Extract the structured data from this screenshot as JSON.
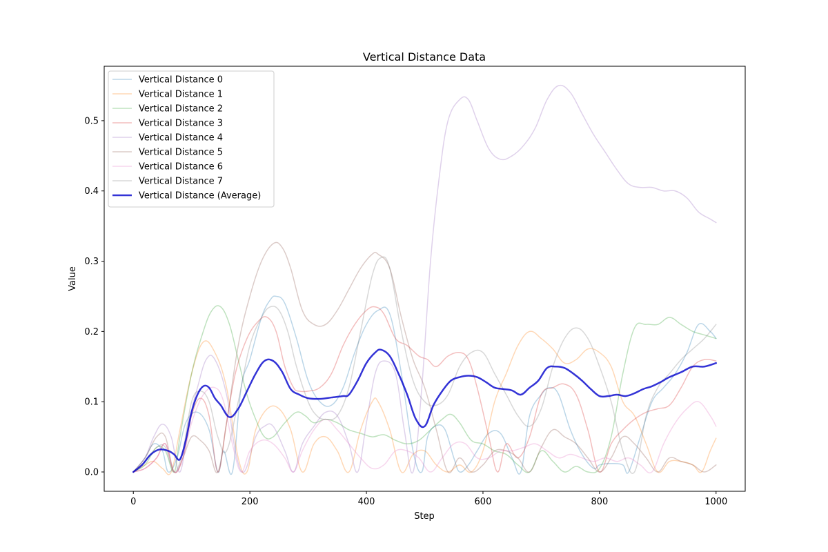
{
  "chart_data": {
    "type": "line",
    "title": "Vertical Distance Data",
    "xlabel": "Step",
    "ylabel": "Value",
    "xlim": [
      -50,
      1050
    ],
    "ylim": [
      -0.0275,
      0.5775
    ],
    "xticks": [
      0,
      200,
      400,
      600,
      800,
      1000
    ],
    "yticks": [
      0.0,
      0.1,
      0.2,
      0.3,
      0.4,
      0.5
    ],
    "xtick_labels": [
      "0",
      "200",
      "400",
      "600",
      "800",
      "1000"
    ],
    "ytick_labels": [
      "0.0",
      "0.1",
      "0.2",
      "0.3",
      "0.4",
      "0.5"
    ],
    "legend_position": "upper-left",
    "grid": false,
    "series": [
      {
        "name": "Vertical Distance 0",
        "color": "#1f77b4",
        "opacity": 0.3,
        "width": 1.5,
        "x": [
          0,
          20,
          35,
          50,
          60,
          75,
          90,
          110,
          130,
          145,
          155,
          170,
          185,
          200,
          220,
          235,
          245,
          260,
          280,
          300,
          320,
          340,
          360,
          380,
          400,
          420,
          440,
          460,
          480,
          495,
          505,
          520,
          535,
          550,
          560,
          575,
          590,
          610,
          630,
          650,
          665,
          680,
          700,
          715,
          730,
          750,
          770,
          790,
          800,
          820,
          840,
          850,
          870,
          890,
          910,
          930,
          950,
          970,
          990,
          1000
        ],
        "y": [
          0.0,
          0.02,
          0.04,
          0.03,
          0.0,
          0.02,
          0.07,
          0.085,
          0.06,
          0.0,
          0.03,
          0.0,
          0.12,
          0.16,
          0.22,
          0.245,
          0.25,
          0.24,
          0.19,
          0.13,
          0.1,
          0.095,
          0.12,
          0.17,
          0.21,
          0.23,
          0.225,
          0.14,
          0.03,
          0.0,
          0.05,
          0.066,
          0.06,
          0.02,
          0.0,
          0.01,
          0.03,
          0.055,
          0.055,
          0.02,
          0.0,
          0.08,
          0.11,
          0.12,
          0.11,
          0.06,
          0.025,
          0.005,
          0.01,
          0.012,
          0.01,
          0.0,
          0.05,
          0.1,
          0.12,
          0.14,
          0.17,
          0.21,
          0.2,
          0.19
        ]
      },
      {
        "name": "Vertical Distance 1",
        "color": "#ff7f0e",
        "opacity": 0.3,
        "width": 1.5,
        "x": [
          0,
          20,
          35,
          50,
          65,
          80,
          100,
          120,
          140,
          160,
          180,
          195,
          210,
          230,
          250,
          270,
          290,
          310,
          330,
          350,
          370,
          390,
          410,
          420,
          440,
          460,
          480,
          500,
          520,
          540,
          560,
          580,
          600,
          620,
          640,
          660,
          680,
          700,
          720,
          740,
          760,
          780,
          800,
          820,
          840,
          860,
          880,
          900,
          920,
          940,
          960,
          975,
          990,
          1000
        ],
        "y": [
          0.0,
          0.01,
          0.015,
          0.005,
          0.0,
          0.06,
          0.14,
          0.185,
          0.17,
          0.12,
          0.02,
          0.0,
          0.06,
          0.09,
          0.09,
          0.06,
          0.0,
          0.04,
          0.05,
          0.03,
          0.0,
          0.06,
          0.1,
          0.1,
          0.06,
          0.0,
          0.025,
          0.03,
          0.01,
          0.0,
          0.01,
          0.0,
          0.03,
          0.1,
          0.14,
          0.18,
          0.2,
          0.19,
          0.175,
          0.155,
          0.16,
          0.175,
          0.17,
          0.15,
          0.1,
          0.08,
          0.04,
          0.0,
          0.015,
          0.015,
          0.01,
          0.0,
          0.03,
          0.048
        ]
      },
      {
        "name": "Vertical Distance 2",
        "color": "#2ca02c",
        "opacity": 0.3,
        "width": 1.5,
        "x": [
          0,
          20,
          40,
          55,
          70,
          80,
          100,
          120,
          135,
          150,
          165,
          180,
          195,
          210,
          225,
          240,
          260,
          280,
          295,
          310,
          330,
          350,
          370,
          390,
          410,
          430,
          450,
          470,
          490,
          510,
          530,
          545,
          560,
          580,
          600,
          620,
          640,
          660,
          680,
          700,
          720,
          740,
          760,
          780,
          800,
          820,
          840,
          860,
          880,
          900,
          920,
          940,
          960,
          980,
          1000
        ],
        "y": [
          0.0,
          0.01,
          0.035,
          0.03,
          0.0,
          0.05,
          0.14,
          0.2,
          0.23,
          0.235,
          0.21,
          0.16,
          0.11,
          0.075,
          0.05,
          0.05,
          0.07,
          0.085,
          0.08,
          0.07,
          0.075,
          0.07,
          0.06,
          0.055,
          0.05,
          0.053,
          0.045,
          0.04,
          0.045,
          0.06,
          0.075,
          0.082,
          0.07,
          0.045,
          0.04,
          0.03,
          0.025,
          0.01,
          0.0,
          0.03,
          0.015,
          0.0,
          0.008,
          0.0,
          0.005,
          0.05,
          0.14,
          0.205,
          0.21,
          0.21,
          0.22,
          0.21,
          0.2,
          0.195,
          0.19
        ]
      },
      {
        "name": "Vertical Distance 3",
        "color": "#d62728",
        "opacity": 0.3,
        "width": 1.5,
        "x": [
          0,
          20,
          40,
          55,
          70,
          85,
          100,
          115,
          130,
          145,
          160,
          175,
          195,
          215,
          230,
          245,
          260,
          275,
          285,
          300,
          320,
          340,
          360,
          380,
          400,
          415,
          430,
          450,
          470,
          490,
          505,
          520,
          540,
          560,
          575,
          590,
          610,
          625,
          640,
          660,
          680,
          700,
          720,
          740,
          760,
          780,
          800,
          820,
          840,
          860,
          880,
          900,
          920,
          940,
          960,
          980,
          1000
        ],
        "y": [
          0.0,
          0.005,
          0.02,
          0.04,
          0.0,
          0.02,
          0.08,
          0.105,
          0.08,
          0.0,
          0.07,
          0.14,
          0.19,
          0.215,
          0.22,
          0.2,
          0.15,
          0.12,
          0.115,
          0.115,
          0.12,
          0.14,
          0.18,
          0.21,
          0.23,
          0.235,
          0.225,
          0.19,
          0.18,
          0.165,
          0.16,
          0.15,
          0.165,
          0.17,
          0.16,
          0.12,
          0.05,
          0.0,
          0.04,
          0.02,
          0.05,
          0.11,
          0.12,
          0.125,
          0.11,
          0.06,
          0.0,
          0.04,
          0.06,
          0.075,
          0.085,
          0.09,
          0.095,
          0.12,
          0.15,
          0.16,
          0.158
        ]
      },
      {
        "name": "Vertical Distance 4",
        "color": "#9467bd",
        "opacity": 0.3,
        "width": 1.5,
        "x": [
          0,
          20,
          35,
          50,
          65,
          80,
          95,
          110,
          125,
          140,
          160,
          175,
          190,
          210,
          225,
          240,
          260,
          275,
          290,
          310,
          330,
          350,
          370,
          385,
          400,
          415,
          430,
          450,
          465,
          480,
          495,
          510,
          525,
          540,
          560,
          575,
          590,
          610,
          630,
          650,
          670,
          690,
          710,
          730,
          750,
          770,
          790,
          810,
          830,
          850,
          870,
          890,
          910,
          930,
          950,
          970,
          990,
          1000
        ],
        "y": [
          0.0,
          0.02,
          0.05,
          0.068,
          0.05,
          0.0,
          0.07,
          0.12,
          0.16,
          0.16,
          0.11,
          0.03,
          0.0,
          0.05,
          0.065,
          0.065,
          0.03,
          0.0,
          0.04,
          0.065,
          0.085,
          0.08,
          0.04,
          0.0,
          0.07,
          0.14,
          0.158,
          0.14,
          0.06,
          0.0,
          0.12,
          0.3,
          0.42,
          0.5,
          0.53,
          0.53,
          0.5,
          0.46,
          0.445,
          0.45,
          0.465,
          0.49,
          0.53,
          0.55,
          0.54,
          0.51,
          0.48,
          0.455,
          0.43,
          0.41,
          0.405,
          0.405,
          0.4,
          0.4,
          0.39,
          0.37,
          0.36,
          0.355
        ]
      },
      {
        "name": "Vertical Distance 5",
        "color": "#8c564b",
        "opacity": 0.3,
        "width": 1.5,
        "x": [
          0,
          20,
          40,
          55,
          70,
          85,
          100,
          115,
          130,
          145,
          160,
          180,
          200,
          220,
          240,
          255,
          270,
          290,
          310,
          330,
          350,
          370,
          390,
          410,
          420,
          440,
          460,
          480,
          500,
          520,
          540,
          560,
          580,
          600,
          620,
          640,
          660,
          680,
          700,
          720,
          740,
          760,
          780,
          800,
          820,
          840,
          860,
          880,
          900,
          920,
          940,
          960,
          980,
          1000
        ],
        "y": [
          0.0,
          0.02,
          0.05,
          0.05,
          0.0,
          0.02,
          0.05,
          0.045,
          0.03,
          0.0,
          0.07,
          0.18,
          0.25,
          0.3,
          0.325,
          0.32,
          0.29,
          0.23,
          0.21,
          0.21,
          0.23,
          0.26,
          0.29,
          0.31,
          0.31,
          0.29,
          0.22,
          0.16,
          0.12,
          0.06,
          0.0,
          0.02,
          0.0,
          0.01,
          0.03,
          0.03,
          0.02,
          0.0,
          0.035,
          0.06,
          0.05,
          0.04,
          0.02,
          0.0,
          0.02,
          0.05,
          0.04,
          0.02,
          0.0,
          0.02,
          0.015,
          0.01,
          0.0,
          0.01
        ]
      },
      {
        "name": "Vertical Distance 6",
        "color": "#e377c2",
        "opacity": 0.3,
        "width": 1.5,
        "x": [
          0,
          20,
          40,
          55,
          70,
          85,
          100,
          120,
          140,
          155,
          170,
          185,
          200,
          220,
          240,
          260,
          275,
          290,
          310,
          330,
          350,
          370,
          390,
          410,
          430,
          450,
          470,
          490,
          510,
          530,
          550,
          570,
          590,
          610,
          630,
          650,
          670,
          690,
          710,
          730,
          750,
          770,
          790,
          810,
          830,
          850,
          870,
          890,
          910,
          930,
          950,
          970,
          990,
          1000
        ],
        "y": [
          0.0,
          0.005,
          0.02,
          0.04,
          0.0,
          0.02,
          0.07,
          0.11,
          0.12,
          0.1,
          0.04,
          0.0,
          0.03,
          0.045,
          0.04,
          0.02,
          0.0,
          0.03,
          0.06,
          0.075,
          0.06,
          0.04,
          0.02,
          0.005,
          0.01,
          0.03,
          0.03,
          0.02,
          0.0,
          0.02,
          0.04,
          0.04,
          0.02,
          0.02,
          0.03,
          0.03,
          0.035,
          0.04,
          0.03,
          0.02,
          0.025,
          0.02,
          0.015,
          0.02,
          0.015,
          0.02,
          0.01,
          0.0,
          0.04,
          0.07,
          0.09,
          0.1,
          0.08,
          0.065
        ]
      },
      {
        "name": "Vertical Distance 7",
        "color": "#7f7f7f",
        "opacity": 0.3,
        "width": 1.5,
        "x": [
          0,
          20,
          40,
          55,
          70,
          85,
          100,
          115,
          130,
          145,
          160,
          180,
          200,
          220,
          235,
          250,
          265,
          280,
          300,
          315,
          330,
          350,
          370,
          390,
          410,
          425,
          440,
          460,
          480,
          500,
          520,
          540,
          560,
          580,
          600,
          620,
          640,
          660,
          680,
          700,
          720,
          740,
          760,
          780,
          800,
          820,
          840,
          860,
          880,
          900,
          920,
          940,
          960,
          980,
          1000
        ],
        "y": [
          0.0,
          0.015,
          0.035,
          0.035,
          0.0,
          0.03,
          0.1,
          0.115,
          0.1,
          0.05,
          0.03,
          0.1,
          0.18,
          0.22,
          0.235,
          0.23,
          0.2,
          0.15,
          0.1,
          0.08,
          0.075,
          0.08,
          0.12,
          0.2,
          0.28,
          0.305,
          0.29,
          0.2,
          0.13,
          0.1,
          0.095,
          0.11,
          0.15,
          0.17,
          0.17,
          0.14,
          0.11,
          0.08,
          0.065,
          0.09,
          0.15,
          0.19,
          0.205,
          0.19,
          0.15,
          0.1,
          0.03,
          0.0,
          0.08,
          0.12,
          0.14,
          0.16,
          0.175,
          0.19,
          0.21
        ]
      },
      {
        "name": "Vertical Distance (Average)",
        "color": "#0000cc",
        "opacity": 0.8,
        "width": 2.5,
        "x": [
          0,
          15,
          30,
          45,
          60,
          70,
          80,
          90,
          100,
          110,
          120,
          130,
          140,
          150,
          165,
          180,
          195,
          210,
          225,
          240,
          255,
          270,
          285,
          300,
          320,
          340,
          360,
          370,
          385,
          400,
          415,
          425,
          440,
          455,
          470,
          485,
          500,
          515,
          530,
          545,
          560,
          575,
          590,
          605,
          620,
          635,
          650,
          665,
          680,
          695,
          710,
          725,
          740,
          755,
          770,
          785,
          800,
          815,
          830,
          845,
          860,
          875,
          890,
          905,
          920,
          940,
          960,
          980,
          1000
        ],
        "y": [
          0.0,
          0.01,
          0.025,
          0.032,
          0.03,
          0.025,
          0.018,
          0.045,
          0.085,
          0.11,
          0.122,
          0.12,
          0.105,
          0.095,
          0.078,
          0.09,
          0.115,
          0.14,
          0.158,
          0.158,
          0.143,
          0.118,
          0.11,
          0.105,
          0.104,
          0.106,
          0.108,
          0.11,
          0.13,
          0.155,
          0.17,
          0.174,
          0.165,
          0.14,
          0.11,
          0.075,
          0.065,
          0.095,
          0.115,
          0.13,
          0.135,
          0.137,
          0.135,
          0.128,
          0.12,
          0.118,
          0.116,
          0.11,
          0.12,
          0.13,
          0.148,
          0.15,
          0.148,
          0.14,
          0.13,
          0.118,
          0.108,
          0.108,
          0.11,
          0.108,
          0.112,
          0.118,
          0.122,
          0.128,
          0.135,
          0.142,
          0.15,
          0.15,
          0.155
        ]
      }
    ]
  }
}
